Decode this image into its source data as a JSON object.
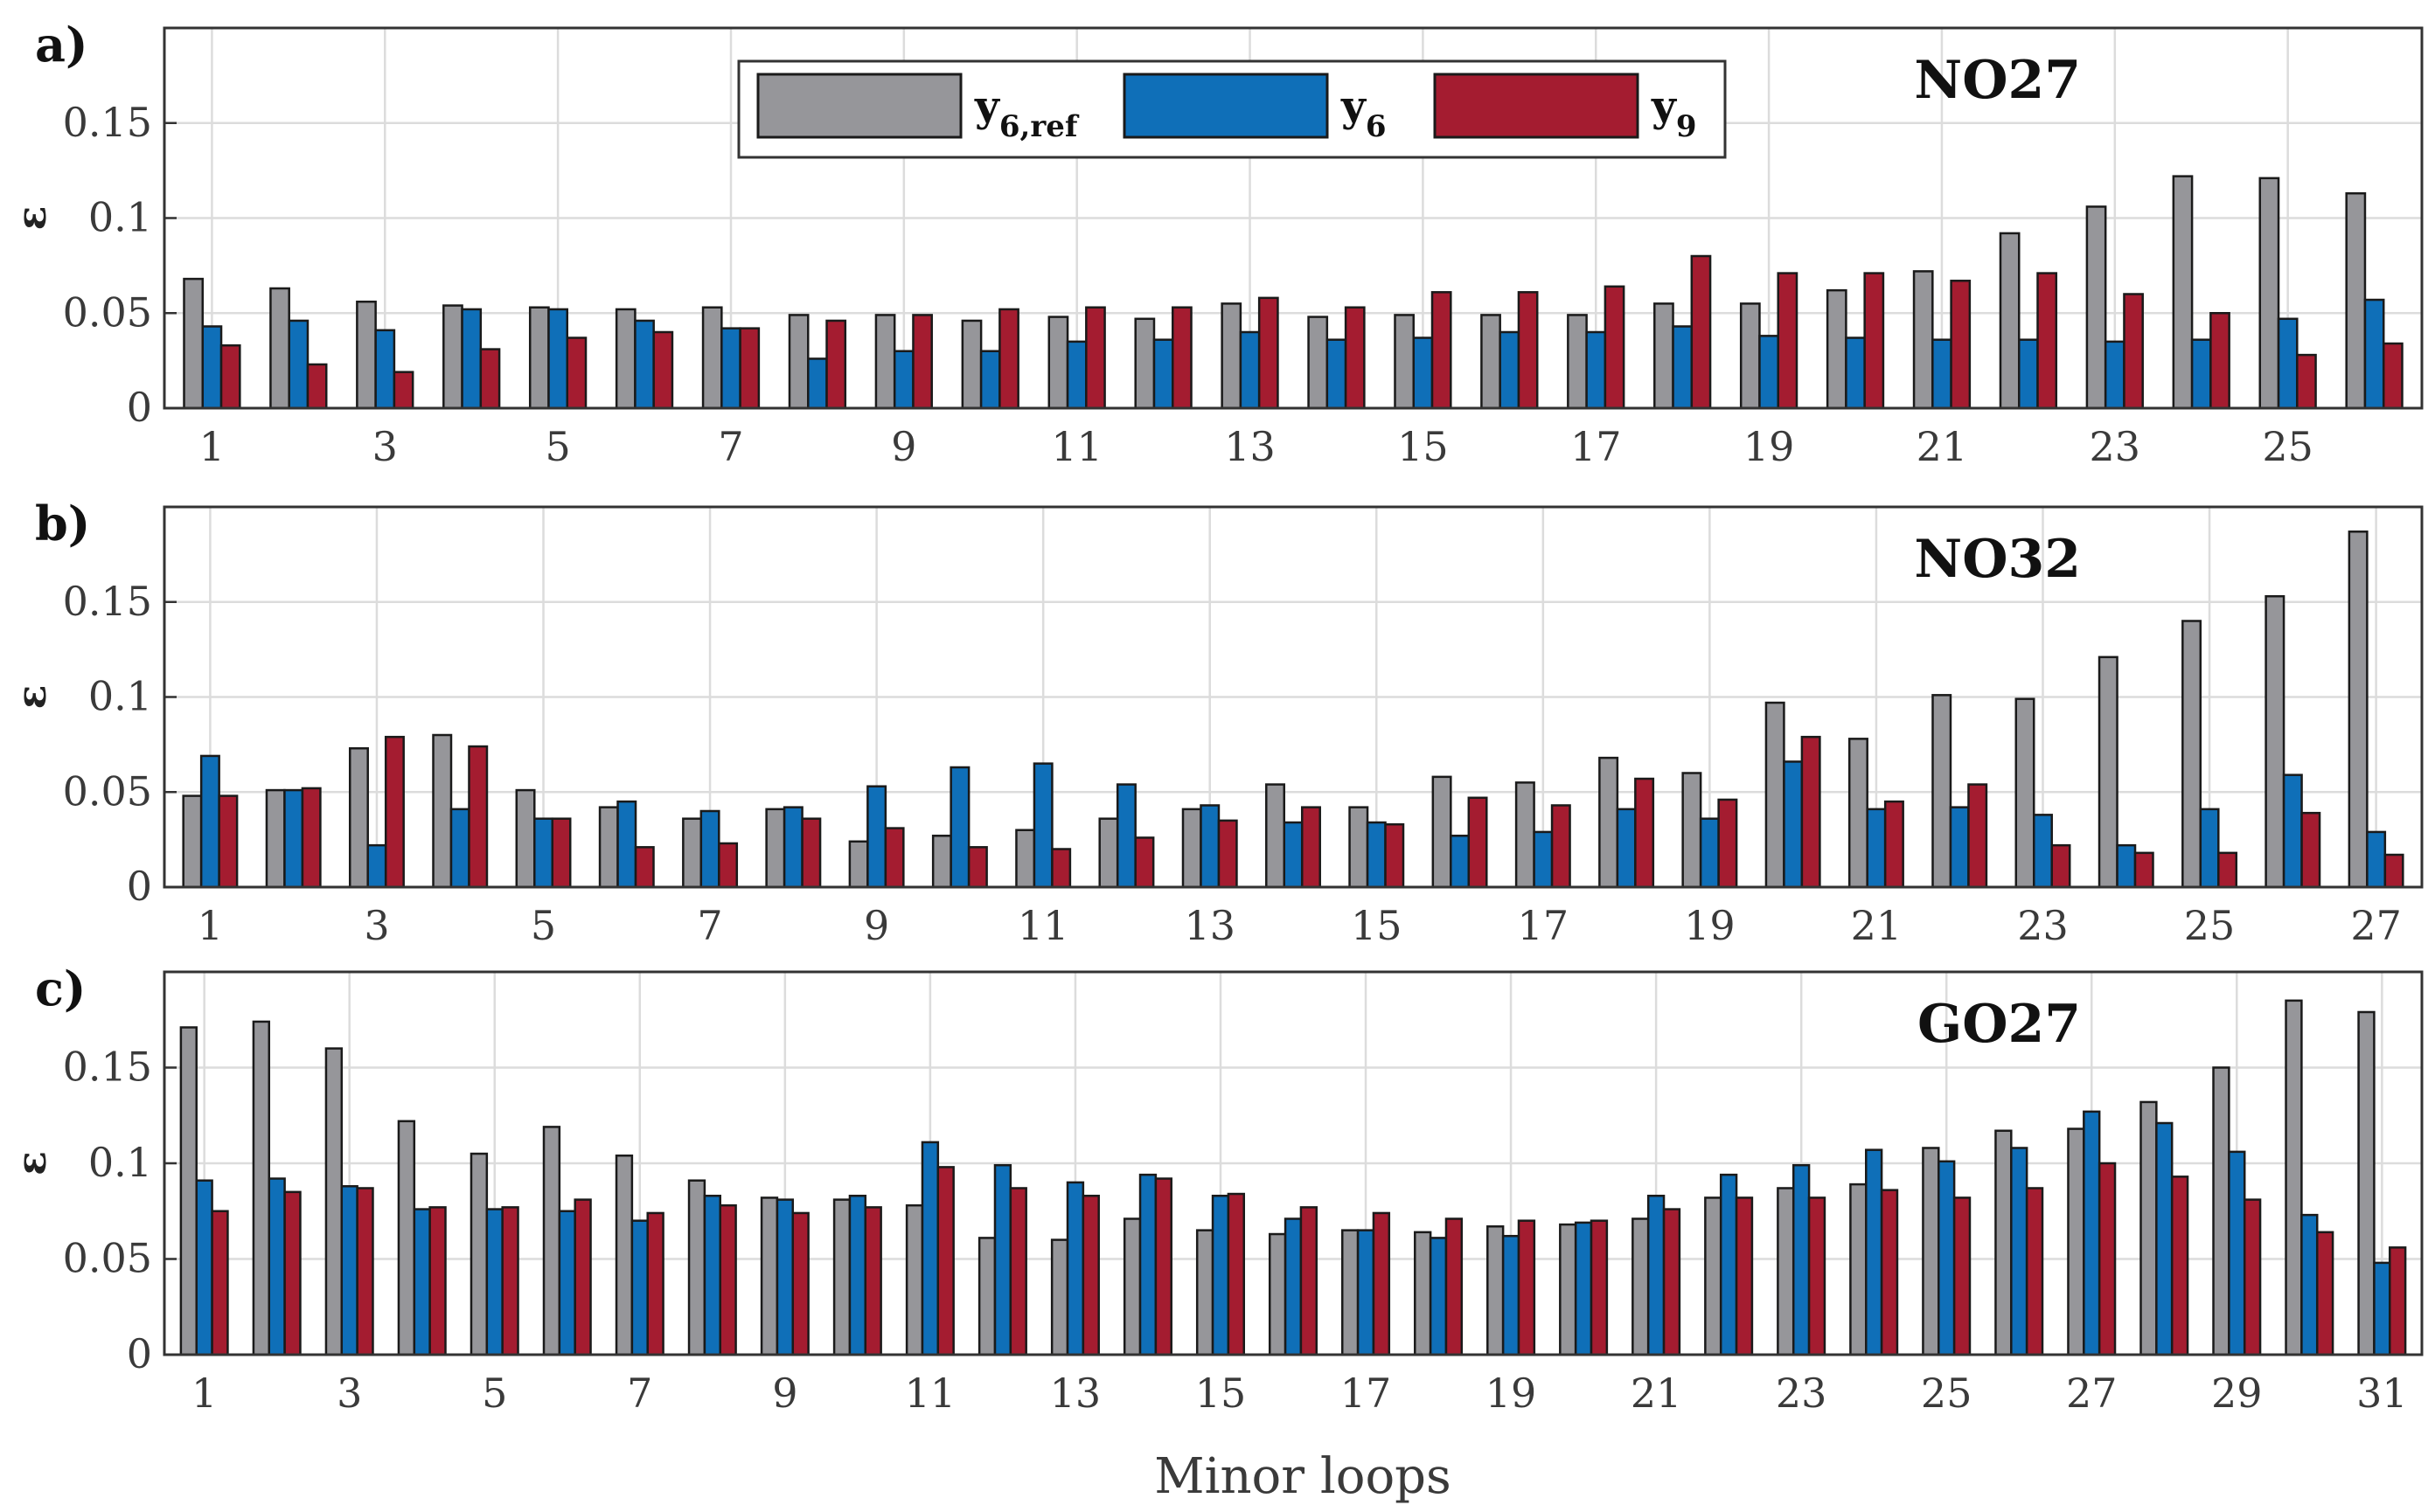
{
  "figure": {
    "xlabel": "Minor loops"
  },
  "legend": {
    "entries": [
      {
        "base": "y",
        "sub": "6,ref",
        "color": "#96969a"
      },
      {
        "base": "y",
        "sub": "6",
        "color": "#0f6fb8"
      },
      {
        "base": "y",
        "sub": "9",
        "color": "#a41c30"
      }
    ]
  },
  "chart_data": [
    {
      "type": "bar",
      "panel_label": "a)",
      "title": "NO27",
      "ylabel": "ε",
      "ylim": [
        0,
        0.2
      ],
      "yticks": [
        0,
        0.05,
        0.1,
        0.15
      ],
      "ytick_labels": [
        "0",
        "0.05",
        "0.1",
        "0.15"
      ],
      "categories": [
        1,
        2,
        3,
        4,
        5,
        6,
        7,
        8,
        9,
        10,
        11,
        12,
        13,
        14,
        15,
        16,
        17,
        18,
        19,
        20,
        21,
        22,
        23,
        24,
        25,
        26
      ],
      "xtick_labels": [
        "1",
        "3",
        "5",
        "7",
        "9",
        "11",
        "13",
        "15",
        "17",
        "19",
        "21",
        "23",
        "25"
      ],
      "grid": true,
      "legend": "top-center",
      "series": [
        {
          "name": "y6,ref",
          "values": [
            0.068,
            0.063,
            0.056,
            0.054,
            0.053,
            0.052,
            0.053,
            0.049,
            0.049,
            0.046,
            0.048,
            0.047,
            0.055,
            0.048,
            0.049,
            0.049,
            0.049,
            0.055,
            0.055,
            0.062,
            0.072,
            0.092,
            0.106,
            0.122,
            0.121,
            0.113
          ]
        },
        {
          "name": "y6",
          "values": [
            0.043,
            0.046,
            0.041,
            0.052,
            0.052,
            0.046,
            0.042,
            0.026,
            0.03,
            0.03,
            0.035,
            0.036,
            0.04,
            0.036,
            0.037,
            0.04,
            0.04,
            0.043,
            0.038,
            0.037,
            0.036,
            0.036,
            0.035,
            0.036,
            0.047,
            0.057
          ]
        },
        {
          "name": "y9",
          "values": [
            0.033,
            0.023,
            0.019,
            0.031,
            0.037,
            0.04,
            0.042,
            0.046,
            0.049,
            0.052,
            0.053,
            0.053,
            0.058,
            0.053,
            0.061,
            0.061,
            0.064,
            0.08,
            0.071,
            0.071,
            0.067,
            0.071,
            0.06,
            0.05,
            0.028,
            0.034
          ]
        }
      ]
    },
    {
      "type": "bar",
      "panel_label": "b)",
      "title": "NO32",
      "ylabel": "ε",
      "ylim": [
        0,
        0.2
      ],
      "yticks": [
        0,
        0.05,
        0.1,
        0.15
      ],
      "ytick_labels": [
        "0",
        "0.05",
        "0.1",
        "0.15"
      ],
      "categories": [
        1,
        2,
        3,
        4,
        5,
        6,
        7,
        8,
        9,
        10,
        11,
        12,
        13,
        14,
        15,
        16,
        17,
        18,
        19,
        20,
        21,
        22,
        23,
        24,
        25,
        26,
        27
      ],
      "xtick_labels": [
        "1",
        "3",
        "5",
        "7",
        "9",
        "11",
        "13",
        "15",
        "17",
        "19",
        "21",
        "23",
        "25",
        "27"
      ],
      "grid": true,
      "series": [
        {
          "name": "y6,ref",
          "values": [
            0.048,
            0.051,
            0.073,
            0.08,
            0.051,
            0.042,
            0.036,
            0.041,
            0.024,
            0.027,
            0.03,
            0.036,
            0.041,
            0.054,
            0.042,
            0.058,
            0.055,
            0.068,
            0.06,
            0.097,
            0.078,
            0.101,
            0.099,
            0.121,
            0.14,
            0.153,
            0.187
          ]
        },
        {
          "name": "y6",
          "values": [
            0.069,
            0.051,
            0.022,
            0.041,
            0.036,
            0.045,
            0.04,
            0.042,
            0.053,
            0.063,
            0.065,
            0.054,
            0.043,
            0.034,
            0.034,
            0.027,
            0.029,
            0.041,
            0.036,
            0.066,
            0.041,
            0.042,
            0.038,
            0.022,
            0.041,
            0.059,
            0.029
          ]
        },
        {
          "name": "y9",
          "values": [
            0.048,
            0.052,
            0.079,
            0.074,
            0.036,
            0.021,
            0.023,
            0.036,
            0.031,
            0.021,
            0.02,
            0.026,
            0.035,
            0.042,
            0.033,
            0.047,
            0.043,
            0.057,
            0.046,
            0.079,
            0.045,
            0.054,
            0.022,
            0.018,
            0.018,
            0.039,
            0.017
          ]
        }
      ]
    },
    {
      "type": "bar",
      "panel_label": "c)",
      "title": "GO27",
      "ylabel": "ε",
      "ylim": [
        0,
        0.2
      ],
      "yticks": [
        0,
        0.05,
        0.1,
        0.15
      ],
      "ytick_labels": [
        "0",
        "0.05",
        "0.1",
        "0.15"
      ],
      "categories": [
        1,
        2,
        3,
        4,
        5,
        6,
        7,
        8,
        9,
        10,
        11,
        12,
        13,
        14,
        15,
        16,
        17,
        18,
        19,
        20,
        21,
        22,
        23,
        24,
        25,
        26,
        27,
        28,
        29,
        30,
        31
      ],
      "xtick_labels": [
        "1",
        "3",
        "5",
        "7",
        "9",
        "11",
        "13",
        "15",
        "17",
        "19",
        "21",
        "23",
        "25",
        "27",
        "29",
        "31"
      ],
      "grid": true,
      "series": [
        {
          "name": "y6,ref",
          "values": [
            0.171,
            0.174,
            0.16,
            0.122,
            0.105,
            0.119,
            0.104,
            0.091,
            0.082,
            0.081,
            0.078,
            0.061,
            0.06,
            0.071,
            0.065,
            0.063,
            0.065,
            0.064,
            0.067,
            0.068,
            0.071,
            0.082,
            0.087,
            0.089,
            0.108,
            0.117,
            0.118,
            0.132,
            0.15,
            0.185,
            0.179
          ]
        },
        {
          "name": "y6",
          "values": [
            0.091,
            0.092,
            0.088,
            0.076,
            0.076,
            0.075,
            0.07,
            0.083,
            0.081,
            0.083,
            0.111,
            0.099,
            0.09,
            0.094,
            0.083,
            0.071,
            0.065,
            0.061,
            0.062,
            0.069,
            0.083,
            0.094,
            0.099,
            0.107,
            0.101,
            0.108,
            0.127,
            0.121,
            0.106,
            0.073,
            0.048
          ]
        },
        {
          "name": "y9",
          "values": [
            0.075,
            0.085,
            0.087,
            0.077,
            0.077,
            0.081,
            0.074,
            0.078,
            0.074,
            0.077,
            0.098,
            0.087,
            0.083,
            0.092,
            0.084,
            0.077,
            0.074,
            0.071,
            0.07,
            0.07,
            0.076,
            0.082,
            0.082,
            0.086,
            0.082,
            0.087,
            0.1,
            0.093,
            0.081,
            0.064,
            0.056
          ]
        }
      ]
    }
  ]
}
